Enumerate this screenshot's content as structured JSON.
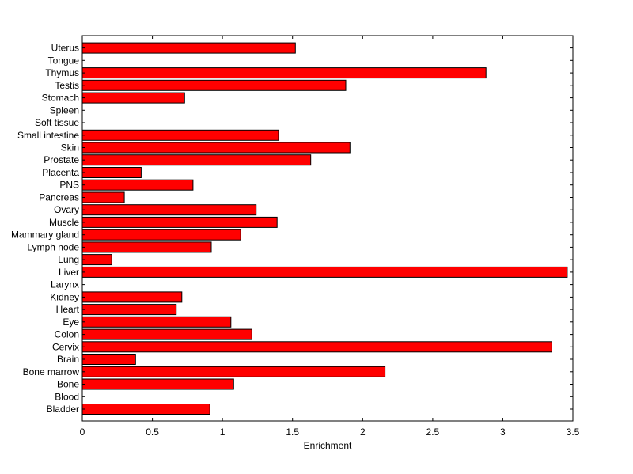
{
  "chart_data": {
    "type": "bar",
    "orientation": "horizontal",
    "title": "",
    "xlabel": "Enrichment",
    "ylabel": "",
    "xlim": [
      0,
      3.5
    ],
    "xticks": [
      0,
      0.5,
      1,
      1.5,
      2,
      2.5,
      3,
      3.5
    ],
    "xtick_labels": [
      "0",
      "0.5",
      "1",
      "1.5",
      "2",
      "2.5",
      "3",
      "3.5"
    ],
    "grid": false,
    "legend": "none",
    "bar_color": "#ff0000",
    "bar_edge_color": "#000000",
    "categories": [
      "Uterus",
      "Tongue",
      "Thymus",
      "Testis",
      "Stomach",
      "Spleen",
      "Soft tissue",
      "Small intestine",
      "Skin",
      "Prostate",
      "Placenta",
      "PNS",
      "Pancreas",
      "Ovary",
      "Muscle",
      "Mammary gland",
      "Lymph node",
      "Lung",
      "Liver",
      "Larynx",
      "Kidney",
      "Heart",
      "Eye",
      "Colon",
      "Cervix",
      "Brain",
      "Bone marrow",
      "Bone",
      "Blood",
      "Bladder"
    ],
    "values": [
      1.52,
      0,
      2.88,
      1.88,
      0.73,
      0,
      0,
      1.4,
      1.91,
      1.63,
      0.42,
      0.79,
      0.3,
      1.24,
      1.39,
      1.13,
      0.92,
      0.21,
      3.46,
      0,
      0.71,
      0.67,
      1.06,
      1.21,
      3.35,
      0.38,
      2.16,
      1.08,
      0,
      0.91
    ]
  }
}
